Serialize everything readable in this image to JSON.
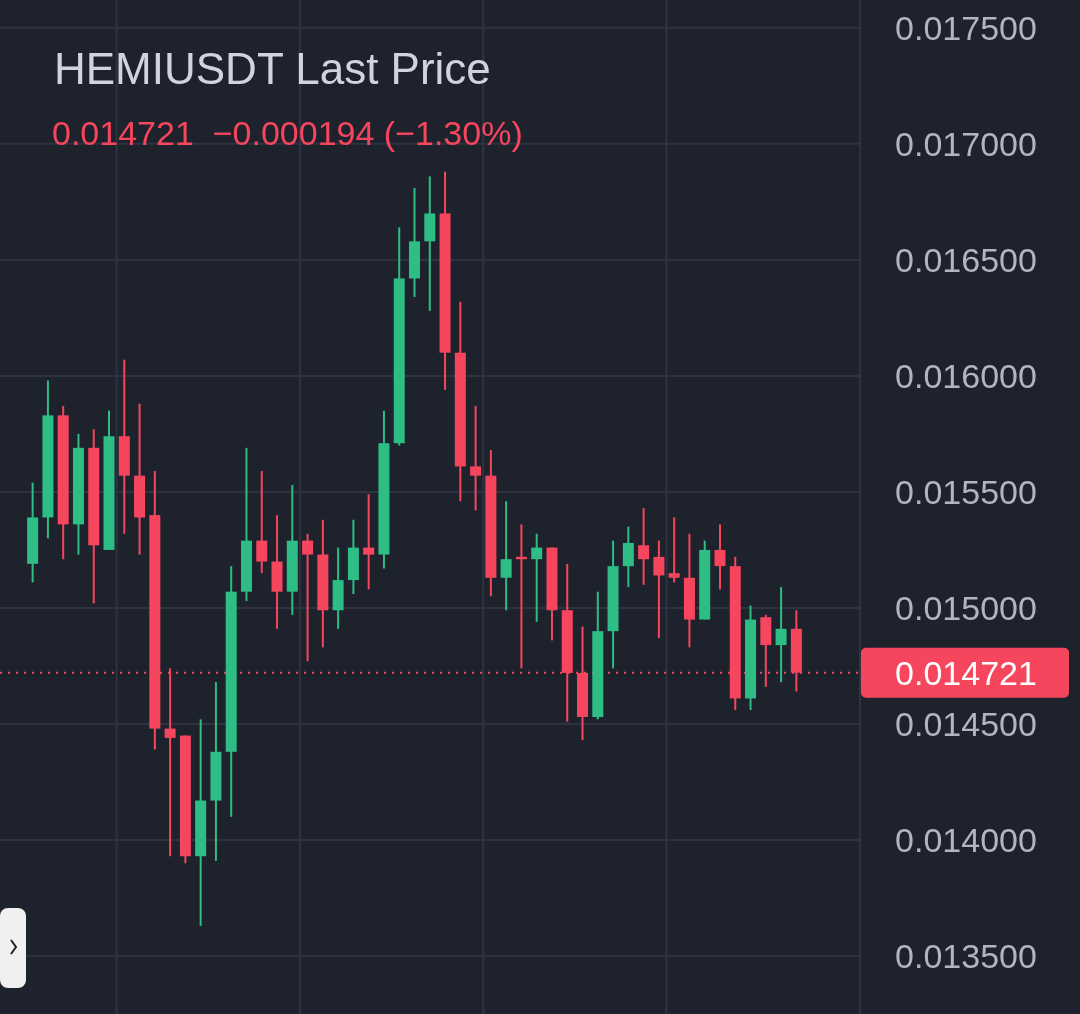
{
  "chart_data": {
    "type": "candlestick",
    "title": "HEMIUSDT Last Price",
    "subtitle": "0.014721  −0.000194 (−1.30%)",
    "categories": [
      null,
      null,
      null,
      null,
      null,
      null,
      null,
      null,
      null,
      null,
      null,
      null,
      null,
      null,
      null,
      null,
      null,
      null,
      null,
      null,
      null,
      null,
      null,
      null,
      null,
      null,
      null,
      null,
      null,
      null,
      null,
      null,
      null,
      null,
      null,
      null,
      null,
      null,
      null,
      null,
      null,
      null,
      null,
      null,
      null,
      null,
      null,
      null,
      null,
      null,
      null
    ],
    "ohlc": [
      [
        0.01519,
        0.01554,
        0.01511,
        0.01539
      ],
      [
        0.01539,
        0.01598,
        0.0153,
        0.01583
      ],
      [
        0.01583,
        0.01587,
        0.01521,
        0.01536
      ],
      [
        0.01536,
        0.01575,
        0.01523,
        0.01569
      ],
      [
        0.01569,
        0.01577,
        0.01502,
        0.01527
      ],
      [
        0.01525,
        0.01585,
        0.01525,
        0.01574
      ],
      [
        0.01574,
        0.01607,
        0.01532,
        0.01557
      ],
      [
        0.01557,
        0.01588,
        0.01523,
        0.01539
      ],
      [
        0.0154,
        0.01559,
        0.01439,
        0.01448
      ],
      [
        0.01448,
        0.01474,
        0.01393,
        0.01444
      ],
      [
        0.01445,
        0.01445,
        0.0139,
        0.01393
      ],
      [
        0.01393,
        0.01452,
        0.01363,
        0.01417
      ],
      [
        0.01417,
        0.01468,
        0.01391,
        0.01438
      ],
      [
        0.01438,
        0.01518,
        0.0141,
        0.01507
      ],
      [
        0.01507,
        0.01569,
        0.01503,
        0.01529
      ],
      [
        0.01529,
        0.01559,
        0.01515,
        0.0152
      ],
      [
        0.0152,
        0.0154,
        0.01491,
        0.01507
      ],
      [
        0.01507,
        0.01553,
        0.01497,
        0.01529
      ],
      [
        0.01529,
        0.01532,
        0.01477,
        0.01523
      ],
      [
        0.01523,
        0.01538,
        0.01483,
        0.01499
      ],
      [
        0.01499,
        0.01526,
        0.01491,
        0.01512
      ],
      [
        0.01512,
        0.01538,
        0.01506,
        0.01526
      ],
      [
        0.01526,
        0.01549,
        0.01508,
        0.01523
      ],
      [
        0.01523,
        0.01585,
        0.01517,
        0.01571
      ],
      [
        0.01571,
        0.01664,
        0.0157,
        0.01642
      ],
      [
        0.01642,
        0.01681,
        0.01634,
        0.01658
      ],
      [
        0.01658,
        0.01686,
        0.01628,
        0.0167
      ],
      [
        0.0167,
        0.01688,
        0.01594,
        0.0161
      ],
      [
        0.0161,
        0.01632,
        0.01546,
        0.01561
      ],
      [
        0.01561,
        0.01587,
        0.01542,
        0.01557
      ],
      [
        0.01557,
        0.01568,
        0.01505,
        0.01513
      ],
      [
        0.01513,
        0.01546,
        0.01499,
        0.01521
      ],
      [
        0.01522,
        0.01536,
        0.01474,
        0.01521
      ],
      [
        0.01521,
        0.01532,
        0.01494,
        0.01526
      ],
      [
        0.01526,
        0.01526,
        0.01486,
        0.01499
      ],
      [
        0.01499,
        0.01519,
        0.01451,
        0.01472
      ],
      [
        0.01472,
        0.01492,
        0.01443,
        0.01453
      ],
      [
        0.01453,
        0.01507,
        0.01452,
        0.0149
      ],
      [
        0.0149,
        0.01529,
        0.01474,
        0.01518
      ],
      [
        0.01518,
        0.01535,
        0.01509,
        0.01528
      ],
      [
        0.01527,
        0.01543,
        0.0151,
        0.01521
      ],
      [
        0.01522,
        0.01529,
        0.01487,
        0.01514
      ],
      [
        0.01515,
        0.01539,
        0.01511,
        0.01513
      ],
      [
        0.01513,
        0.01532,
        0.01483,
        0.01495
      ],
      [
        0.01495,
        0.01529,
        0.01495,
        0.01525
      ],
      [
        0.01525,
        0.01536,
        0.01508,
        0.01518
      ],
      [
        0.01518,
        0.01522,
        0.01456,
        0.01461
      ],
      [
        0.01461,
        0.01501,
        0.01456,
        0.01495
      ],
      [
        0.01496,
        0.01497,
        0.01466,
        0.01484
      ],
      [
        0.01484,
        0.01509,
        0.01468,
        0.01491
      ],
      [
        0.01491,
        0.01499,
        0.01464,
        0.014721
      ]
    ],
    "colors": [
      "#2ebd85",
      "#2ebd85",
      "#f6465d",
      "#2ebd85",
      "#f6465d",
      "#2ebd85",
      "#f6465d",
      "#f6465d",
      "#f6465d",
      "#f6465d",
      "#f6465d",
      "#2ebd85",
      "#2ebd85",
      "#2ebd85",
      "#2ebd85",
      "#f6465d",
      "#f6465d",
      "#2ebd85",
      "#f6465d",
      "#f6465d",
      "#2ebd85",
      "#2ebd85",
      "#f6465d",
      "#2ebd85",
      "#2ebd85",
      "#2ebd85",
      "#2ebd85",
      "#f6465d",
      "#f6465d",
      "#f6465d",
      "#f6465d",
      "#2ebd85",
      "#f6465d",
      "#2ebd85",
      "#f6465d",
      "#f6465d",
      "#f6465d",
      "#2ebd85",
      "#2ebd85",
      "#2ebd85",
      "#f6465d",
      "#f6465d",
      "#f6465d",
      "#f6465d",
      "#2ebd85",
      "#f6465d",
      "#f6465d",
      "#2ebd85",
      "#f6465d",
      "#2ebd85",
      "#f6465d"
    ],
    "ylim": [
      0.01325,
      0.01762
    ],
    "yticks": [
      {
        "value": 0.0135,
        "label": "0.013500"
      },
      {
        "value": 0.014,
        "label": "0.014000"
      },
      {
        "value": 0.0145,
        "label": "0.014500"
      },
      {
        "value": 0.015,
        "label": "0.015000"
      },
      {
        "value": 0.0155,
        "label": "0.015500"
      },
      {
        "value": 0.016,
        "label": "0.016000"
      },
      {
        "value": 0.0165,
        "label": "0.016500"
      },
      {
        "value": 0.017,
        "label": "0.017000"
      },
      {
        "value": 0.0175,
        "label": "0.017500"
      }
    ],
    "ref_lines": [
      {
        "axis": "y",
        "value": 0.014721,
        "label": "0.014721",
        "color": "#f6465d",
        "line_style": "dotted"
      }
    ],
    "grid": true,
    "tick_labels": "y"
  }
}
